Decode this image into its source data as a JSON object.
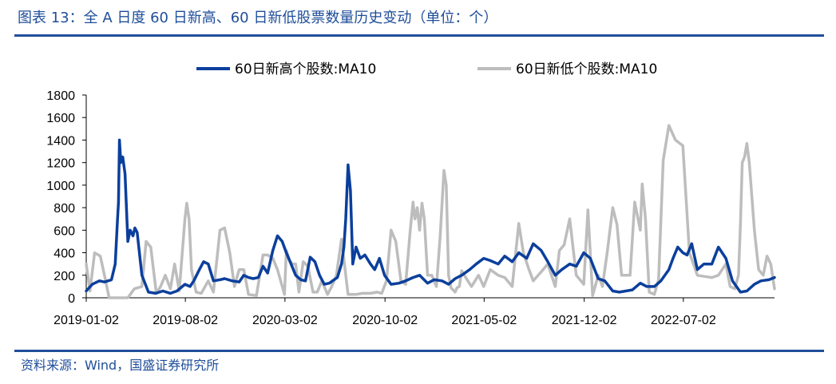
{
  "header": {
    "title": "图表 13：全 A 日度 60 日新高、60 日新低股票数量历史变动（单位：个）"
  },
  "footer": {
    "source": "资料来源：Wind，国盛证券研究所"
  },
  "colors": {
    "brand": "#1f4e9a",
    "series_high": "#0b3f9c",
    "series_low": "#bdbdbd"
  },
  "chart_data": {
    "type": "line",
    "title": "",
    "xlabel": "",
    "ylabel": "",
    "ylim": [
      0,
      1800
    ],
    "yticks": [
      "0",
      "200",
      "400",
      "600",
      "800",
      "1000",
      "1200",
      "1400",
      "1600",
      "1800"
    ],
    "xticks": [
      "2019-01-02",
      "2019-08-02",
      "2020-03-02",
      "2020-10-02",
      "2021-05-02",
      "2021-12-02",
      "2022-07-02"
    ],
    "xrange": [
      "2019-01-02",
      "2023-01-13"
    ],
    "grid": false,
    "legend_position": "top-center",
    "series": [
      {
        "name": "60日新高个股数:MA10",
        "color": "#0b3f9c",
        "x": [
          "2019-01-02",
          "2019-01-15",
          "2019-01-30",
          "2019-02-10",
          "2019-02-25",
          "2019-03-05",
          "2019-03-10",
          "2019-03-12",
          "2019-03-14",
          "2019-03-17",
          "2019-03-21",
          "2019-03-26",
          "2019-04-01",
          "2019-04-06",
          "2019-04-12",
          "2019-04-16",
          "2019-04-21",
          "2019-05-01",
          "2019-05-15",
          "2019-05-30",
          "2019-06-15",
          "2019-07-01",
          "2019-07-15",
          "2019-08-01",
          "2019-08-12",
          "2019-08-20",
          "2019-09-01",
          "2019-09-10",
          "2019-09-20",
          "2019-10-01",
          "2019-10-15",
          "2019-10-25",
          "2019-11-10",
          "2019-11-25",
          "2019-12-05",
          "2019-12-15",
          "2019-12-25",
          "2020-01-05",
          "2020-01-15",
          "2020-01-25",
          "2020-02-05",
          "2020-02-15",
          "2020-02-25",
          "2020-03-05",
          "2020-03-15",
          "2020-03-25",
          "2020-04-05",
          "2020-04-15",
          "2020-04-25",
          "2020-05-05",
          "2020-05-15",
          "2020-05-25",
          "2020-06-05",
          "2020-06-15",
          "2020-06-22",
          "2020-07-01",
          "2020-07-06",
          "2020-07-10",
          "2020-07-15",
          "2020-07-20",
          "2020-07-25",
          "2020-08-01",
          "2020-08-10",
          "2020-08-20",
          "2020-09-01",
          "2020-09-10",
          "2020-09-20",
          "2020-10-01",
          "2020-10-15",
          "2020-11-01",
          "2020-11-15",
          "2020-12-01",
          "2020-12-15",
          "2021-01-01",
          "2021-01-15",
          "2021-02-01",
          "2021-02-15",
          "2021-03-01",
          "2021-03-15",
          "2021-04-01",
          "2021-04-15",
          "2021-05-01",
          "2021-05-15",
          "2021-06-01",
          "2021-06-15",
          "2021-07-01",
          "2021-07-15",
          "2021-08-01",
          "2021-08-15",
          "2021-09-01",
          "2021-09-15",
          "2021-10-01",
          "2021-10-15",
          "2021-11-01",
          "2021-11-15",
          "2021-12-01",
          "2021-12-15",
          "2022-01-01",
          "2022-01-15",
          "2022-02-01",
          "2022-02-15",
          "2022-03-01",
          "2022-03-15",
          "2022-04-01",
          "2022-04-15",
          "2022-05-01",
          "2022-05-15",
          "2022-06-01",
          "2022-06-10",
          "2022-06-20",
          "2022-07-01",
          "2022-07-10",
          "2022-07-20",
          "2022-08-01",
          "2022-08-15",
          "2022-09-01",
          "2022-09-15",
          "2022-10-01",
          "2022-10-15",
          "2022-11-01",
          "2022-11-15",
          "2022-12-01",
          "2022-12-15",
          "2023-01-01",
          "2023-01-13"
        ],
        "y": [
          60,
          120,
          150,
          140,
          160,
          300,
          700,
          850,
          1400,
          1200,
          1250,
          1100,
          500,
          600,
          550,
          620,
          580,
          200,
          50,
          40,
          60,
          40,
          60,
          120,
          100,
          150,
          250,
          320,
          300,
          150,
          160,
          170,
          150,
          140,
          200,
          180,
          170,
          180,
          280,
          220,
          420,
          550,
          500,
          400,
          300,
          200,
          160,
          150,
          360,
          320,
          200,
          120,
          130,
          160,
          180,
          300,
          450,
          700,
          1180,
          950,
          300,
          450,
          350,
          380,
          300,
          250,
          350,
          200,
          120,
          130,
          150,
          180,
          200,
          130,
          160,
          150,
          120,
          170,
          200,
          250,
          300,
          350,
          330,
          300,
          370,
          320,
          400,
          350,
          480,
          420,
          320,
          200,
          250,
          300,
          280,
          400,
          350,
          170,
          150,
          60,
          50,
          60,
          70,
          130,
          100,
          100,
          150,
          250,
          350,
          450,
          400,
          380,
          480,
          250,
          300,
          300,
          450,
          350,
          150,
          50,
          60,
          120,
          150,
          160,
          180
        ]
      },
      {
        "name": "60日新低个股数:MA10",
        "color": "#bdbdbd",
        "x": [
          "2019-01-02",
          "2019-01-10",
          "2019-01-20",
          "2019-02-01",
          "2019-02-10",
          "2019-02-20",
          "2019-03-01",
          "2019-03-15",
          "2019-04-01",
          "2019-04-15",
          "2019-05-01",
          "2019-05-10",
          "2019-05-20",
          "2019-06-01",
          "2019-06-10",
          "2019-06-20",
          "2019-07-01",
          "2019-07-10",
          "2019-07-20",
          "2019-08-01",
          "2019-08-05",
          "2019-08-10",
          "2019-08-15",
          "2019-08-25",
          "2019-09-05",
          "2019-09-20",
          "2019-10-01",
          "2019-10-15",
          "2019-10-25",
          "2019-11-05",
          "2019-11-15",
          "2019-11-25",
          "2019-12-05",
          "2019-12-15",
          "2020-01-01",
          "2020-01-15",
          "2020-01-25",
          "2020-02-05",
          "2020-02-15",
          "2020-03-01",
          "2020-03-05",
          "2020-03-12",
          "2020-03-18",
          "2020-03-25",
          "2020-04-01",
          "2020-04-10",
          "2020-04-20",
          "2020-05-01",
          "2020-05-10",
          "2020-05-20",
          "2020-06-01",
          "2020-06-10",
          "2020-06-20",
          "2020-07-01",
          "2020-07-15",
          "2020-08-01",
          "2020-08-15",
          "2020-09-01",
          "2020-09-15",
          "2020-09-25",
          "2020-10-05",
          "2020-10-15",
          "2020-10-25",
          "2020-11-05",
          "2020-11-15",
          "2020-11-25",
          "2020-12-01",
          "2020-12-05",
          "2020-12-10",
          "2020-12-15",
          "2020-12-20",
          "2020-12-25",
          "2021-01-01",
          "2021-01-10",
          "2021-01-20",
          "2021-01-28",
          "2021-02-05",
          "2021-02-10",
          "2021-02-15",
          "2021-02-20",
          "2021-03-01",
          "2021-03-05",
          "2021-03-10",
          "2021-03-15",
          "2021-03-25",
          "2021-04-05",
          "2021-04-20",
          "2021-05-01",
          "2021-05-15",
          "2021-06-01",
          "2021-06-15",
          "2021-07-01",
          "2021-07-15",
          "2021-07-25",
          "2021-08-05",
          "2021-08-15",
          "2021-09-01",
          "2021-09-15",
          "2021-10-01",
          "2021-10-10",
          "2021-10-20",
          "2021-11-01",
          "2021-11-15",
          "2021-12-01",
          "2021-12-10",
          "2021-12-20",
          "2022-01-01",
          "2022-01-10",
          "2022-01-20",
          "2022-02-01",
          "2022-02-10",
          "2022-02-20",
          "2022-03-01",
          "2022-03-10",
          "2022-03-20",
          "2022-04-01",
          "2022-04-05",
          "2022-04-12",
          "2022-04-20",
          "2022-05-01",
          "2022-05-10",
          "2022-05-20",
          "2022-06-01",
          "2022-06-15",
          "2022-07-01",
          "2022-07-15",
          "2022-08-01",
          "2022-08-15",
          "2022-09-01",
          "2022-09-15",
          "2022-10-01",
          "2022-10-10",
          "2022-10-20",
          "2022-10-28",
          "2022-11-01",
          "2022-11-05",
          "2022-11-10",
          "2022-11-15",
          "2022-11-20",
          "2022-12-01",
          "2022-12-10",
          "2022-12-20",
          "2022-12-28",
          "2023-01-05",
          "2023-01-13"
        ],
        "y": [
          300,
          60,
          400,
          370,
          200,
          0,
          0,
          0,
          0,
          80,
          100,
          500,
          450,
          40,
          100,
          200,
          80,
          300,
          60,
          700,
          840,
          700,
          250,
          50,
          40,
          150,
          50,
          600,
          620,
          400,
          100,
          250,
          250,
          30,
          20,
          380,
          380,
          350,
          250,
          30,
          420,
          330,
          300,
          300,
          50,
          320,
          280,
          50,
          50,
          150,
          30,
          100,
          200,
          520,
          30,
          30,
          40,
          40,
          50,
          40,
          150,
          600,
          500,
          150,
          120,
          600,
          850,
          700,
          800,
          600,
          840,
          700,
          200,
          200,
          100,
          550,
          1130,
          1000,
          200,
          90,
          50,
          90,
          100,
          240,
          170,
          100,
          200,
          100,
          250,
          200,
          180,
          100,
          660,
          400,
          260,
          150,
          230,
          300,
          100,
          420,
          470,
          700,
          200,
          120,
          780,
          20,
          200,
          100,
          400,
          800,
          650,
          200,
          200,
          200,
          850,
          600,
          1010,
          700,
          50,
          30,
          160,
          1220,
          1530,
          1400,
          1350,
          400,
          200,
          190,
          180,
          200,
          300,
          100,
          80,
          200,
          650,
          1200,
          1250,
          1370,
          1200,
          600,
          250,
          200,
          370,
          300,
          80
        ]
      }
    ]
  }
}
